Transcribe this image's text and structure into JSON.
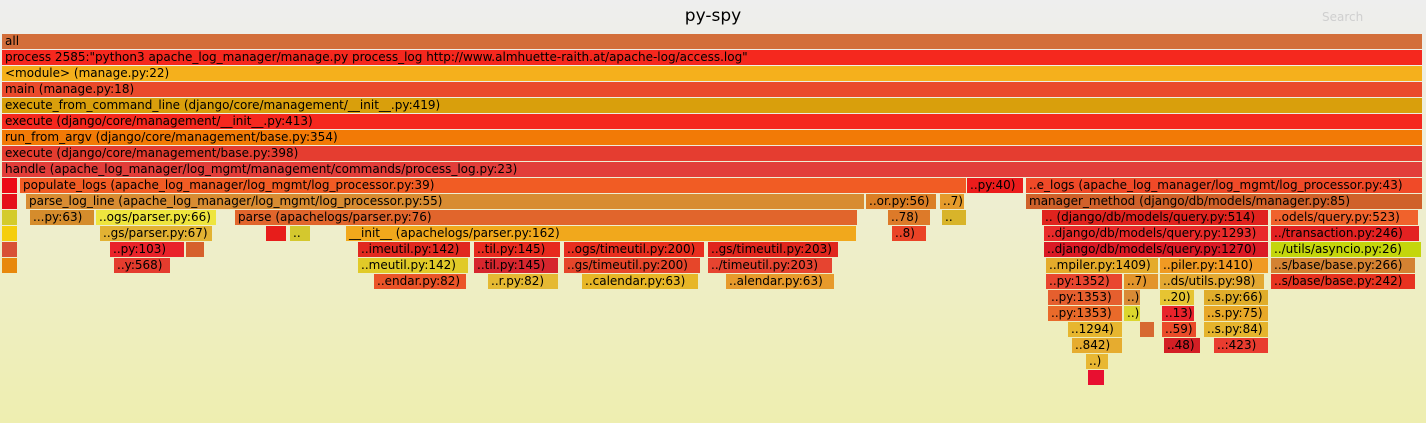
{
  "header": {
    "title": "py-spy",
    "search_label": "Search"
  },
  "frames": [
    {
      "label": "all",
      "color": "#d36e3a"
    },
    {
      "label": "process 2585:\"python3 apache_log_manager/manage.py process_log http://www.almhuette-raith.at/apache-log/access.log\"",
      "color": "#f5281e"
    },
    {
      "label": "<module> (manage.py:22)",
      "color": "#f5b01c"
    },
    {
      "label": "main (manage.py:18)",
      "color": "#ea4a2c"
    },
    {
      "label": "execute_from_command_line (django/core/management/__init__.py:419)",
      "color": "#d99f0c"
    },
    {
      "label": "execute (django/core/management/__init__.py:413)",
      "color": "#f5281e"
    },
    {
      "label": "run_from_argv (django/core/management/base.py:354)",
      "color": "#f27a06"
    },
    {
      "label": "execute (django/core/management/base.py:398)",
      "color": "#e53d30"
    },
    {
      "label": "handle (apache_log_manager/log_mgmt/management/commands/process_log.py:23)",
      "color": "#e23e3a"
    },
    {
      "label": "",
      "color": "#ec0c16"
    },
    {
      "label": "populate_logs (apache_log_manager/log_mgmt/log_processor.py:39)",
      "color": "#f15c24"
    },
    {
      "label": "..py:40)",
      "color": "#eb1c1c"
    },
    {
      "label": "..e_logs (apache_log_manager/log_mgmt/log_processor.py:43)",
      "color": "#f04a28"
    },
    {
      "label": "",
      "color": "#e5101a"
    },
    {
      "label": "parse_log_line (apache_log_manager/log_mgmt/log_processor.py:55)",
      "color": "#d88c32"
    },
    {
      "label": "..or.py:56)",
      "color": "#db7e24"
    },
    {
      "label": "..7)",
      "color": "#e59b2b"
    },
    {
      "label": "manager_method (django/db/models/manager.py:85)",
      "color": "#d0612a"
    },
    {
      "label": "",
      "color": "#d4cb2c"
    },
    {
      "label": "...py:63)",
      "color": "#d58c2c"
    },
    {
      "label": "..ogs/parser.py:66)",
      "color": "#eee53e"
    },
    {
      "label": "parse (apachelogs/parser.py:76)",
      "color": "#e1652c"
    },
    {
      "label": "..78)",
      "color": "#dd7a29"
    },
    {
      "label": "..",
      "color": "#d8b42a"
    },
    {
      "label": ".. (django/db/models/query.py:514)",
      "color": "#e0231e"
    },
    {
      "label": "..odels/query.py:523)",
      "color": "#f0622c"
    },
    {
      "label": "",
      "color": "#f5ce0c"
    },
    {
      "label": "..gs/parser.py:67)",
      "color": "#e2b233"
    },
    {
      "label": "",
      "color": "#e71d1b"
    },
    {
      "label": "..",
      "color": "#d4c82e"
    },
    {
      "label": "__init__ (apachelogs/parser.py:162)",
      "color": "#f1a81c"
    },
    {
      "label": "..8)",
      "color": "#ea4326"
    },
    {
      "label": "..django/db/models/query.py:1293)",
      "color": "#e92b2a"
    },
    {
      "label": "../transaction.py:246)",
      "color": "#e32222"
    },
    {
      "label": "",
      "color": "#d85035"
    },
    {
      "label": "..py:103)",
      "color": "#e9232a"
    },
    {
      "label": "",
      "color": "#d6602c"
    },
    {
      "label": "..imeutil.py:142)",
      "color": "#e12920"
    },
    {
      "label": "..til.py:145)",
      "color": "#e72a1e"
    },
    {
      "label": "..ogs/timeutil.py:200)",
      "color": "#e82f1f"
    },
    {
      "label": "..gs/timeutil.py:203)",
      "color": "#e0271e"
    },
    {
      "label": "..django/db/models/query.py:1270)",
      "color": "#da1a25"
    },
    {
      "label": "../utils/asyncio.py:26)",
      "color": "#c4d60c"
    },
    {
      "label": "",
      "color": "#e8880c"
    },
    {
      "label": "..y:568)",
      "color": "#e43c2e"
    },
    {
      "label": "..meutil.py:142)",
      "color": "#e1ca28"
    },
    {
      "label": "..til.py:145)",
      "color": "#d6262e"
    },
    {
      "label": "..gs/timeutil.py:200)",
      "color": "#e6462a"
    },
    {
      "label": "../timeutil.py:203)",
      "color": "#e64430"
    },
    {
      "label": "..mpiler.py:1409)",
      "color": "#e5ab2b"
    },
    {
      "label": "..piler.py:1410)",
      "color": "#f09a23"
    },
    {
      "label": "..s/base/base.py:266)",
      "color": "#d48232"
    },
    {
      "label": "..endar.py:82)",
      "color": "#eb5428"
    },
    {
      "label": "..r.py:82)",
      "color": "#e5b933"
    },
    {
      "label": "..calendar.py:63)",
      "color": "#e7b627"
    },
    {
      "label": "..alendar.py:63)",
      "color": "#e79a2c"
    },
    {
      "label": "..py:1352)",
      "color": "#e9462f"
    },
    {
      "label": "..7)",
      "color": "#e3952b"
    },
    {
      "label": "..ds/utils.py:98)",
      "color": "#e3a832"
    },
    {
      "label": "..s/base/base.py:242)",
      "color": "#e73320"
    },
    {
      "label": "..py:1353)",
      "color": "#e55f2e"
    },
    {
      "label": "..)",
      "color": "#d98a35"
    },
    {
      "label": "..20)",
      "color": "#e6c432"
    },
    {
      "label": "..s.py:66)",
      "color": "#e0ad2a"
    },
    {
      "label": "..py:1353)",
      "color": "#e96a2a"
    },
    {
      "label": "..)",
      "color": "#dbd62e"
    },
    {
      "label": "..13)",
      "color": "#e8232b"
    },
    {
      "label": "..s.py:75)",
      "color": "#e8a828"
    },
    {
      "label": "..1294)",
      "color": "#e7b62f"
    },
    {
      "label": "",
      "color": "#d76931"
    },
    {
      "label": "..59)",
      "color": "#ea4c2a"
    },
    {
      "label": "..s.py:84)",
      "color": "#e5b42d"
    },
    {
      "label": "..842)",
      "color": "#e6ac2f"
    },
    {
      "label": "..48)",
      "color": "#d31f25"
    },
    {
      "label": "..:423)",
      "color": "#e93c2f"
    },
    {
      "label": "..)",
      "color": "#e8b732"
    },
    {
      "label": "",
      "color": "#e80f30"
    }
  ]
}
